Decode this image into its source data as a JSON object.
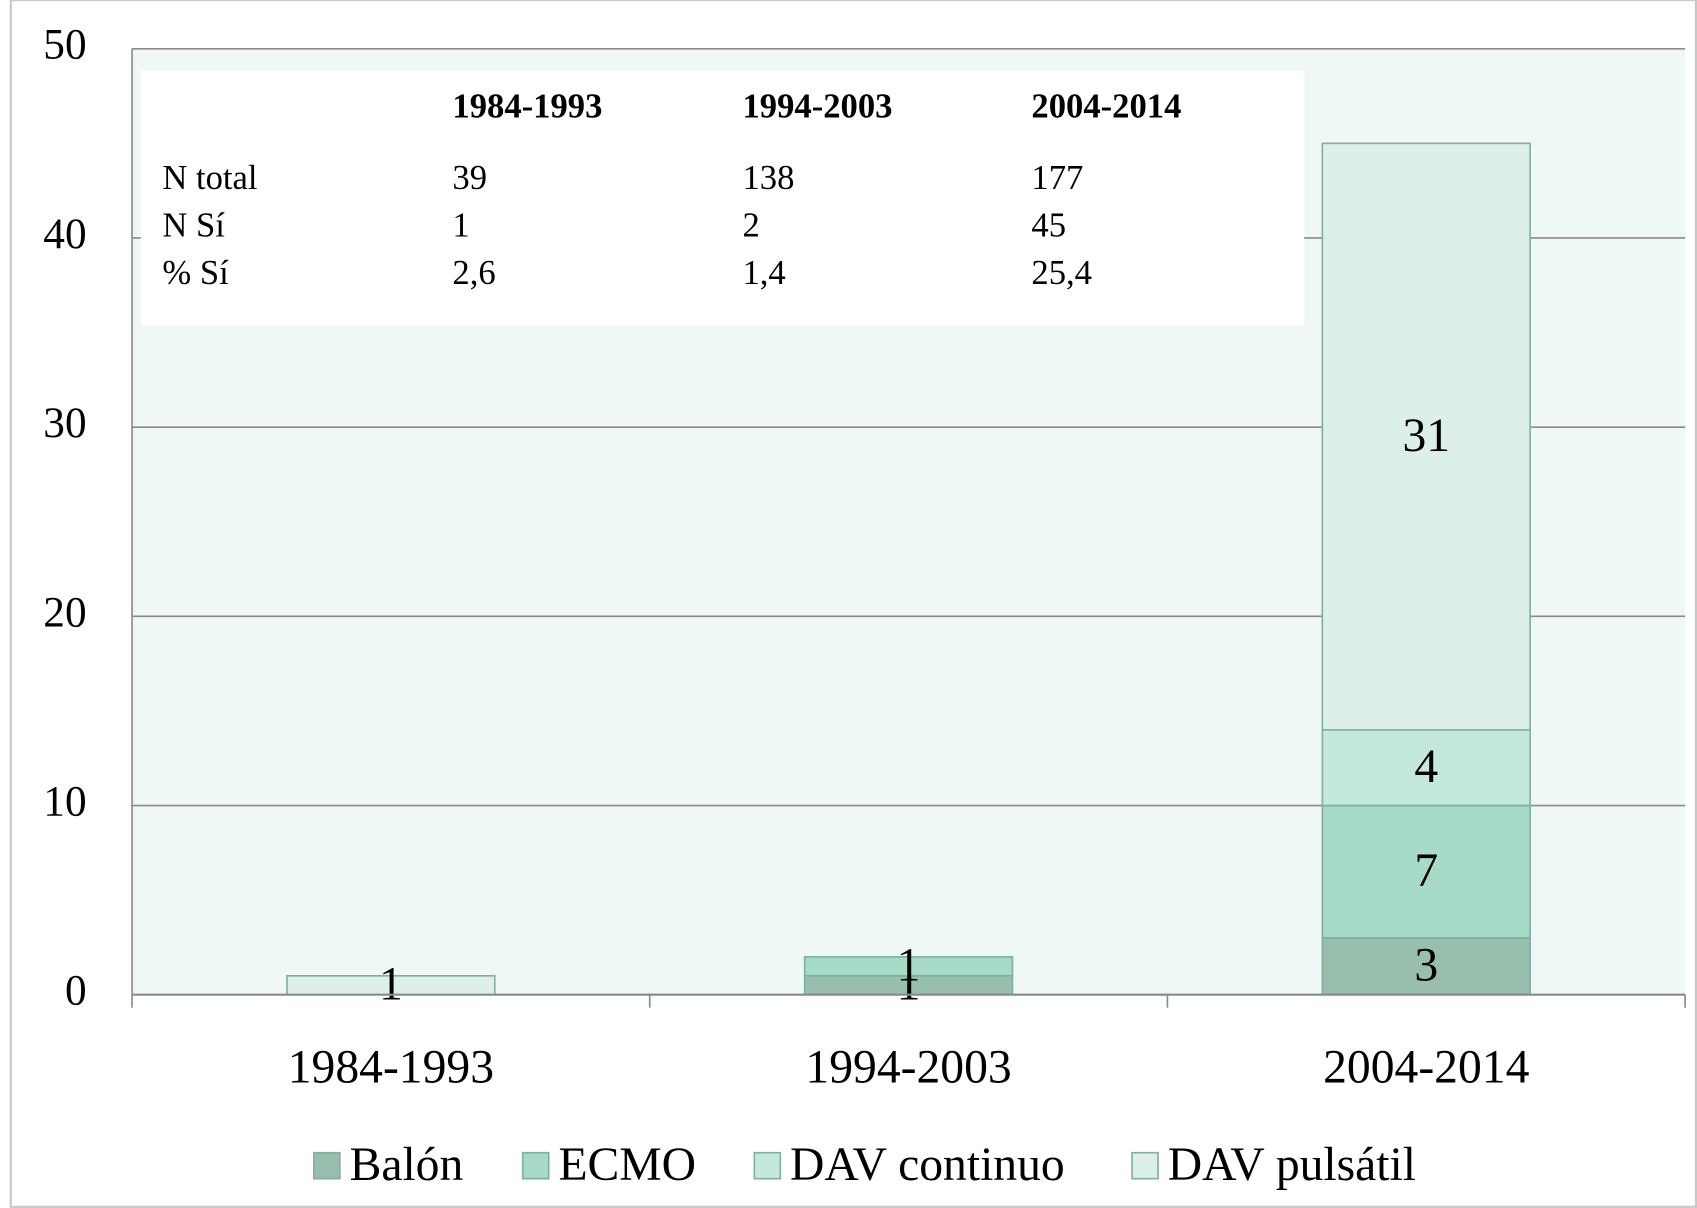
{
  "chart_data": {
    "type": "stacked_bar",
    "categories": [
      "1984-1993",
      "1994-2003",
      "2004-2014"
    ],
    "series": [
      {
        "name": "Balón",
        "color": "#98bfae",
        "values": [
          0,
          1,
          3
        ]
      },
      {
        "name": "ECMO",
        "color": "#a8dac8",
        "values": [
          0,
          1,
          7
        ]
      },
      {
        "name": "DAV continuo",
        "color": "#c4e9db",
        "values": [
          0,
          0,
          4
        ]
      },
      {
        "name": "DAV pulsátil",
        "color": "#dcf0e8",
        "values": [
          1,
          0,
          31
        ]
      }
    ],
    "ylim": [
      0,
      50
    ],
    "yticks": [
      0,
      10,
      20,
      30,
      40,
      50
    ],
    "grid": true,
    "legend": "bottom",
    "table": {
      "header": [
        "1984-1993",
        "1994-2003",
        "2004-2014"
      ],
      "rows": [
        {
          "label": "N total",
          "cells": [
            "39",
            "138",
            "177"
          ]
        },
        {
          "label": "N Sí",
          "cells": [
            "1",
            "2",
            "45"
          ]
        },
        {
          "label": "% Sí",
          "cells": [
            "2,6",
            "1,4",
            "25,4"
          ]
        }
      ]
    }
  }
}
